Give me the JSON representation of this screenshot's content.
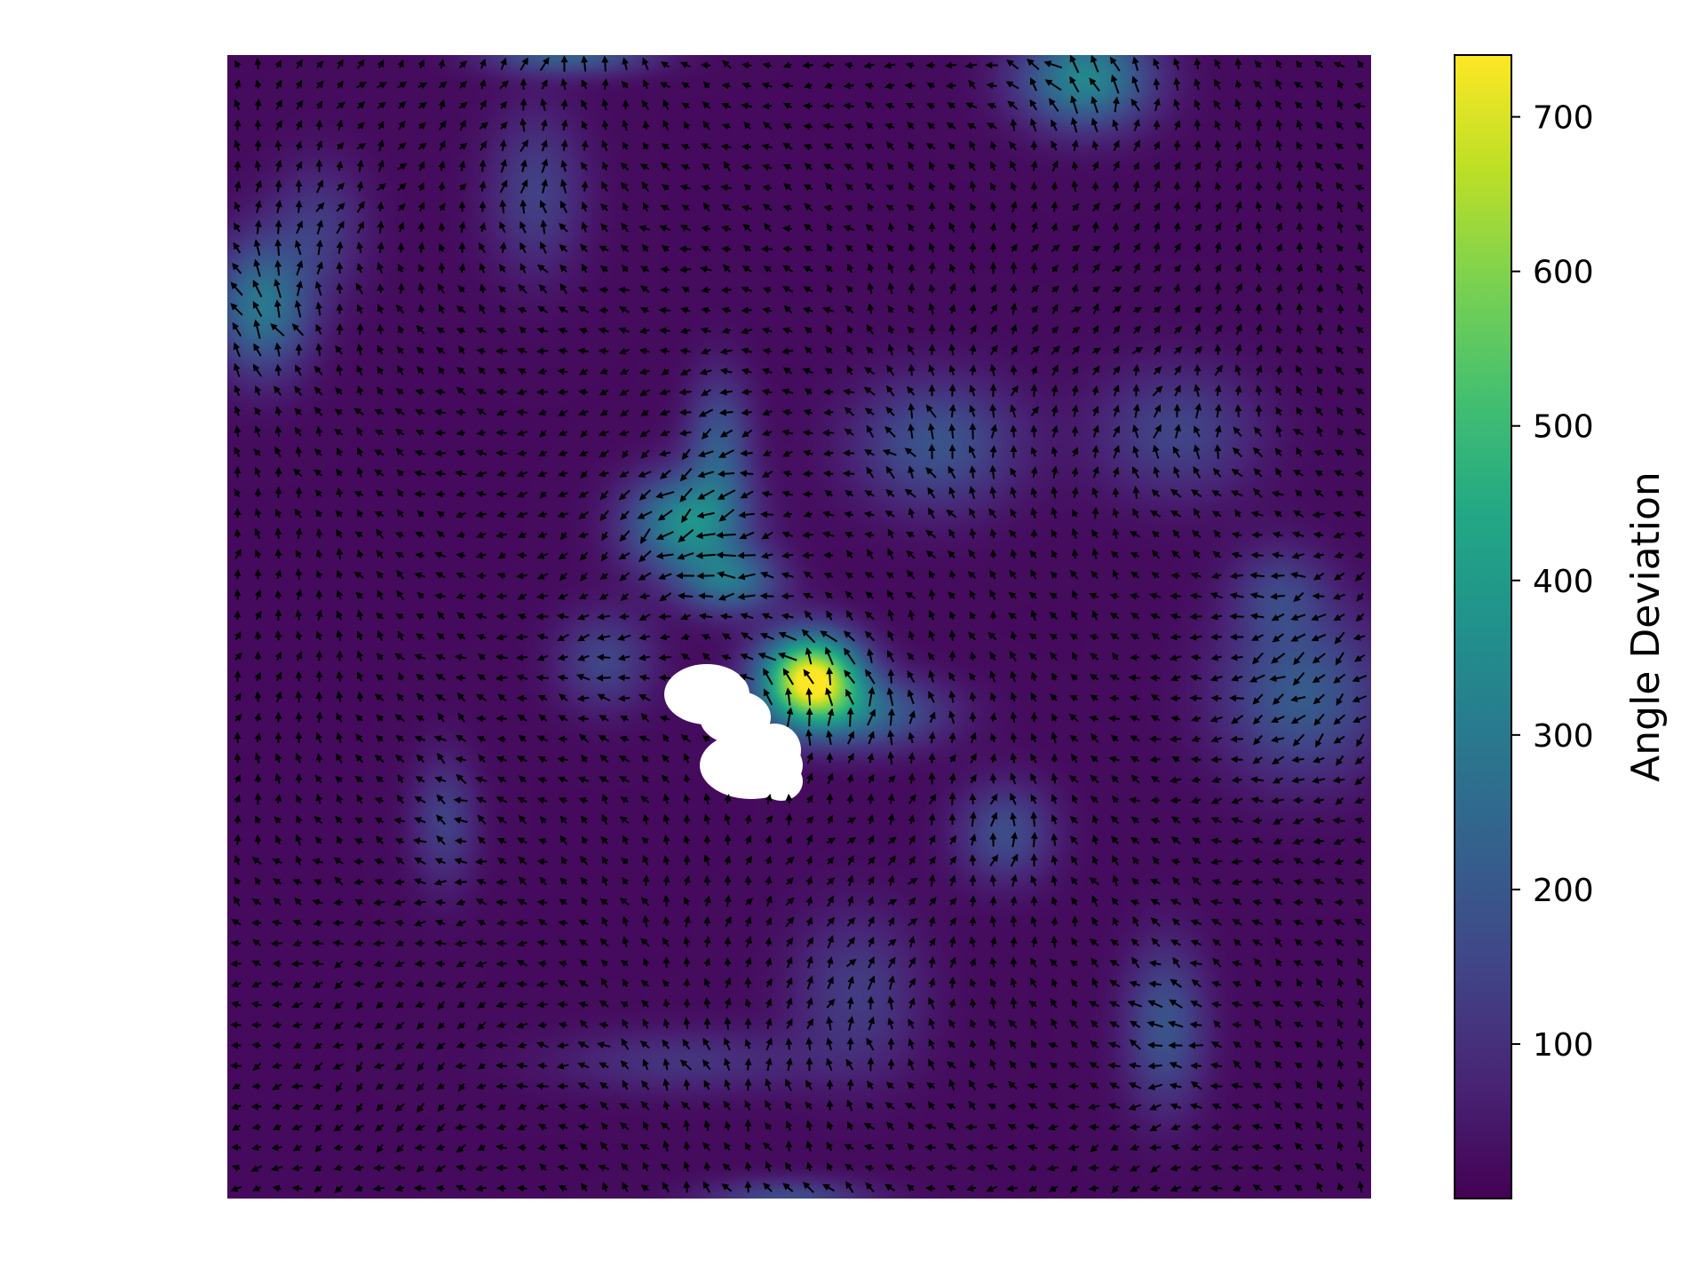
{
  "chart_data": {
    "type": "heatmap",
    "subtype": "quiver-over-scalar-field",
    "title": "",
    "xlabel": "",
    "ylabel": "",
    "axes_visible": false,
    "grid": false,
    "colormap": "viridis",
    "colorbar": {
      "label": "Angle Deviation",
      "range": [
        0,
        740
      ],
      "ticks": [
        100,
        200,
        300,
        400,
        500,
        600,
        700
      ],
      "tick_labels": [
        "100",
        "200",
        "300",
        "400",
        "500",
        "600",
        "700"
      ],
      "placement": "right"
    },
    "field_range": [
      0,
      740
    ],
    "background_level": 20,
    "hotspots": [
      {
        "x": 0.51,
        "y": 0.545,
        "sx": 0.03,
        "sy": 0.026,
        "value": 720
      },
      {
        "x": 0.555,
        "y": 0.575,
        "sx": 0.05,
        "sy": 0.022,
        "value": 210
      },
      {
        "x": 0.4,
        "y": 0.41,
        "sx": 0.035,
        "sy": 0.03,
        "value": 330
      },
      {
        "x": 0.43,
        "y": 0.345,
        "sx": 0.02,
        "sy": 0.045,
        "value": 180
      },
      {
        "x": 0.44,
        "y": 0.46,
        "sx": 0.03,
        "sy": 0.02,
        "value": 240
      },
      {
        "x": 0.03,
        "y": 0.22,
        "sx": 0.03,
        "sy": 0.04,
        "value": 270
      },
      {
        "x": 0.75,
        "y": 0.02,
        "sx": 0.04,
        "sy": 0.03,
        "value": 320
      },
      {
        "x": 0.3,
        "y": 0.0,
        "sx": 0.05,
        "sy": 0.012,
        "value": 200
      },
      {
        "x": 0.62,
        "y": 0.34,
        "sx": 0.05,
        "sy": 0.04,
        "value": 170
      },
      {
        "x": 0.83,
        "y": 0.33,
        "sx": 0.05,
        "sy": 0.04,
        "value": 130
      },
      {
        "x": 0.94,
        "y": 0.56,
        "sx": 0.05,
        "sy": 0.05,
        "value": 190
      },
      {
        "x": 0.92,
        "y": 0.47,
        "sx": 0.03,
        "sy": 0.03,
        "value": 110
      },
      {
        "x": 0.82,
        "y": 0.85,
        "sx": 0.025,
        "sy": 0.05,
        "value": 170
      },
      {
        "x": 0.68,
        "y": 0.68,
        "sx": 0.03,
        "sy": 0.03,
        "value": 150
      },
      {
        "x": 0.33,
        "y": 0.53,
        "sx": 0.03,
        "sy": 0.03,
        "value": 130
      },
      {
        "x": 0.19,
        "y": 0.67,
        "sx": 0.02,
        "sy": 0.04,
        "value": 120
      },
      {
        "x": 0.27,
        "y": 0.12,
        "sx": 0.03,
        "sy": 0.05,
        "value": 120
      },
      {
        "x": 0.55,
        "y": 0.82,
        "sx": 0.04,
        "sy": 0.05,
        "value": 110
      },
      {
        "x": 0.49,
        "y": 1.0,
        "sx": 0.05,
        "sy": 0.012,
        "value": 150
      },
      {
        "x": 0.08,
        "y": 0.15,
        "sx": 0.03,
        "sy": 0.04,
        "value": 100
      },
      {
        "x": 0.4,
        "y": 0.88,
        "sx": 0.08,
        "sy": 0.02,
        "value": 90
      }
    ],
    "masked_region": "white blob near center of field",
    "quiver": {
      "grid_columns": 56,
      "grid_rows": 56,
      "color": "#000000",
      "base_direction": "upper-left"
    }
  }
}
